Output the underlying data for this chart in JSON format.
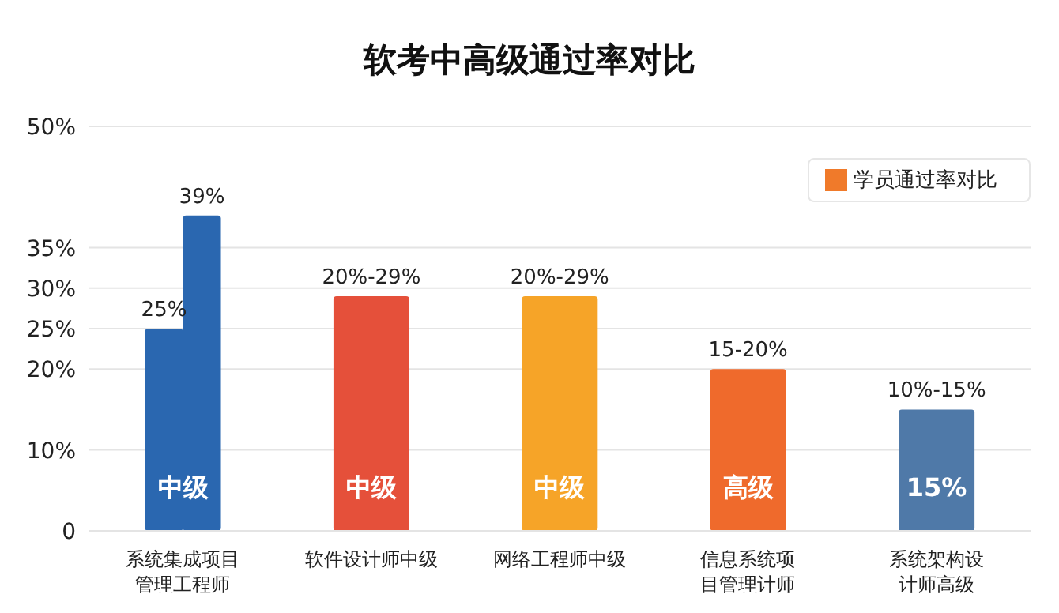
{
  "chart_data": {
    "type": "bar",
    "title": "软考中高级通过率对比",
    "categories": [
      "系统集成项目管理工程师",
      "软件设计师中级",
      "网络工程师中级",
      "信息系统项目管理计师",
      "系统架构设计师高级"
    ],
    "series": [
      {
        "name": "学员通过率对比",
        "color": "#f07a2a",
        "colors": [
          "#2a67b0",
          "#e5503a",
          "#f6a428",
          "#ef6a2c",
          "#4f79a8"
        ],
        "values": [
          25,
          29,
          29,
          20,
          15
        ],
        "value_labels": [
          "25%",
          null,
          null,
          null,
          null
        ]
      },
      {
        "color": "#2a67b0",
        "values": [
          39,
          null,
          null,
          null,
          null
        ],
        "value_labels": [
          "39%",
          null,
          null,
          null,
          null
        ]
      }
    ],
    "ylim": [
      0,
      50
    ],
    "yticks": [
      {
        "value": 0,
        "label": "0"
      },
      {
        "value": 10,
        "label": "10%"
      },
      {
        "value": 20,
        "label": "20%"
      },
      {
        "value": 25,
        "label": "25%"
      },
      {
        "value": 30,
        "label": "30%"
      },
      {
        "value": 35,
        "label": "35%"
      },
      {
        "value": 50,
        "label": "50%"
      }
    ],
    "grid": "y",
    "legend": "top right",
    "annotations": [
      "中级",
      "中级",
      "中级",
      "高级",
      "15%",
      {
        "text": "20%-29%",
        "x": "软件设计师中级",
        "y": 29
      },
      {
        "text": "20%-29%",
        "x": "网络工程师中级",
        "y": 29
      },
      {
        "text": "15-20%",
        "x": "信息系统项目管理计师",
        "y": 20
      },
      {
        "text": "10%-15%",
        "x": "系统架构设计师高级",
        "y": 15
      }
    ]
  }
}
